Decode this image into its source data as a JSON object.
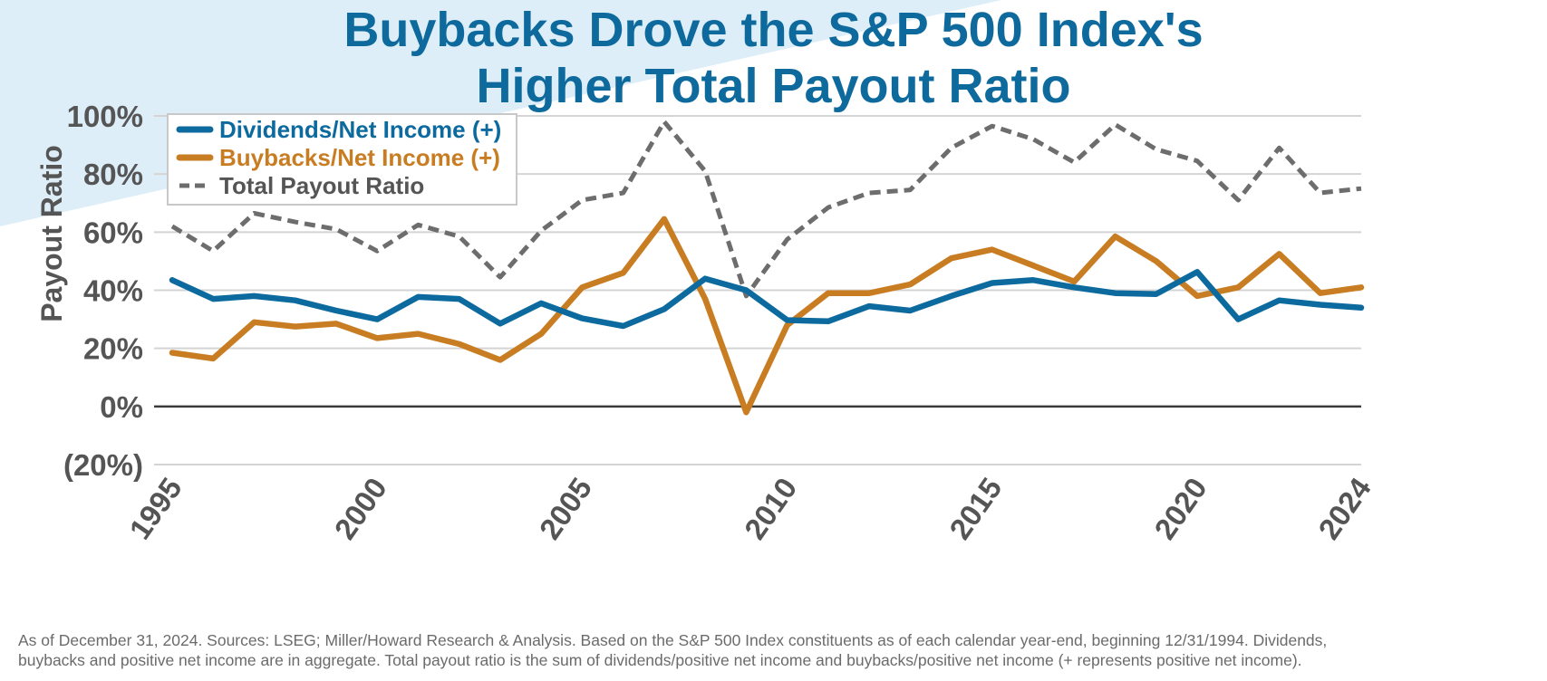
{
  "title": {
    "line1": "Buybacks Drove the S&P 500 Index's",
    "line2": "Higher Total Payout Ratio"
  },
  "colors": {
    "title": "#0e6a9c",
    "dividends": "#0c6a9e",
    "buybacks": "#c97d22",
    "total": "#6d6d6d",
    "grid": "#d4d4d4",
    "zero_line": "#3a3a3a",
    "background_wedge": "#ddeef9",
    "axis_text": "#555555",
    "footnote": "#6b6b6b"
  },
  "chart_data": {
    "type": "line",
    "ylabel": "Payout Ratio",
    "xlabel": "",
    "ylim": [
      -20,
      100
    ],
    "yticks": [
      100,
      80,
      60,
      40,
      20,
      0,
      -20
    ],
    "ytick_labels": [
      "100%",
      "80%",
      "60%",
      "40%",
      "20%",
      "0%",
      "(20%)"
    ],
    "xticks": [
      1995,
      2000,
      2005,
      2010,
      2015,
      2020,
      2024
    ],
    "xtick_labels": [
      "1995",
      "2000",
      "2005",
      "2010",
      "2015",
      "2020",
      "2024"
    ],
    "grid": true,
    "legend_position": "top-left",
    "x": [
      1995,
      1996,
      1997,
      1998,
      1999,
      2000,
      2001,
      2002,
      2003,
      2004,
      2005,
      2006,
      2007,
      2008,
      2009,
      2010,
      2011,
      2012,
      2013,
      2014,
      2015,
      2016,
      2017,
      2018,
      2019,
      2020,
      2021,
      2022,
      2023,
      2024
    ],
    "series": [
      {
        "name": "Dividends/Net Income (+)",
        "style": "solid",
        "values": [
          43.5,
          37,
          38,
          36.5,
          33,
          30,
          37.7,
          37,
          28.5,
          35.5,
          30.3,
          27.7,
          33.5,
          44,
          40,
          29.7,
          29.3,
          34.5,
          33,
          38,
          42.5,
          43.5,
          41,
          39,
          38.7,
          46.3,
          30,
          36.5,
          35,
          34
        ]
      },
      {
        "name": "Buybacks/Net Income (+)",
        "style": "solid",
        "values": [
          18.5,
          16.5,
          29,
          27.5,
          28.5,
          23.5,
          25,
          21.5,
          16,
          25,
          41,
          46,
          64.5,
          37,
          -2,
          28,
          39,
          39,
          42,
          51,
          54,
          48.5,
          43,
          58.5,
          50,
          38,
          41,
          52.5,
          39,
          41
        ]
      },
      {
        "name": "Total Payout Ratio",
        "style": "dashed",
        "values": [
          62,
          53.5,
          66.5,
          63.5,
          61,
          53.5,
          62.5,
          58.5,
          44.5,
          60.5,
          71,
          73.5,
          98,
          81,
          38,
          57.5,
          68.5,
          73.5,
          74.5,
          89,
          96.5,
          92,
          84,
          97,
          88.5,
          84.5,
          71,
          89,
          73.5,
          75
        ]
      }
    ]
  },
  "footnote": {
    "line1": "As of December 31, 2024. Sources: LSEG; Miller/Howard Research & Analysis.  Based on the S&P 500 Index constituents as of each calendar year-end, beginning 12/31/1994. Dividends,",
    "line2": "buybacks and positive net income are in aggregate. Total payout ratio is the sum of dividends/positive net income and buybacks/positive net income (+ represents positive net income)."
  }
}
